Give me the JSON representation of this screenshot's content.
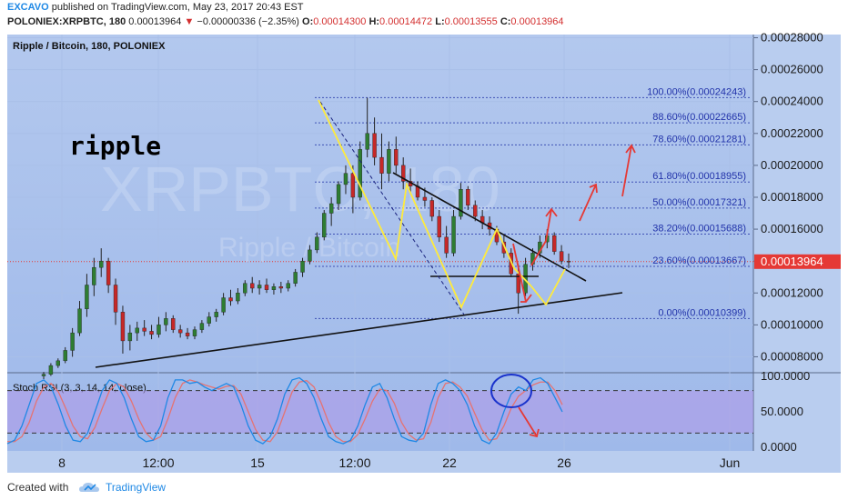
{
  "header": {
    "author": "EXCAVO",
    "published": "published on TradingView.com, May 23, 2017 20:43 EST",
    "symbol": "POLONIEX:XRPBTC, 180",
    "last": "0.00013964",
    "change_arrow": "▼",
    "change": "−0.00000336 (−2.35%)",
    "o_label": "O:",
    "o_value": "0.00014300",
    "h_label": "H:",
    "h_value": "0.00014472",
    "l_label": "L:",
    "l_value": "0.00013555",
    "c_label": "C:",
    "c_value": "0.00013964"
  },
  "footer": {
    "created_with": "Created with",
    "brand": "TradingView"
  },
  "chart_data": {
    "type": "candlestick",
    "title": "Ripple / Bitcoin, 180, POLONIEX",
    "annotation_text": "ripple",
    "watermark_text": "XRPBTC, 180",
    "watermark_sub": "Ripple / Bitcoin",
    "y_axis_ticks": [
      "0.00028000",
      "0.00026000",
      "0.00024000",
      "0.00022000",
      "0.00020000",
      "0.00018000",
      "0.00016000",
      "0.00014000",
      "0.00012000",
      "0.00010000",
      "0.00008000"
    ],
    "ylim": [
      7e-05,
      0.000282
    ],
    "x_axis_ticks": [
      "8",
      "12:00",
      "15",
      "12:00",
      "22",
      "26",
      "Jun"
    ],
    "current_price_label": "0.00013964",
    "candles": [
      [
        6.8e-05,
        7.05e-05,
        6.6e-05,
        6.9e-05
      ],
      [
        6.9e-05,
        7.6e-05,
        6.8e-05,
        7.45e-05
      ],
      [
        7.45e-05,
        7.9e-05,
        7.3e-05,
        7.75e-05
      ],
      [
        7.75e-05,
        8.6e-05,
        7.6e-05,
        8.4e-05
      ],
      [
        8.4e-05,
        9.8e-05,
        8e-05,
        9.5e-05
      ],
      [
        9.5e-05,
        0.000115,
        9.3e-05,
        0.00011
      ],
      [
        0.00011,
        0.000132,
        0.000105,
        0.000125
      ],
      [
        0.000125,
        0.000142,
        0.000118,
        0.000136
      ],
      [
        0.000136,
        0.000148,
        0.00013,
        0.00014
      ],
      [
        0.00014,
        0.000142,
        0.00012,
        0.000125
      ],
      [
        0.000125,
        0.000129,
        0.0001,
        0.000108
      ],
      [
        0.000108,
        0.000112,
        8.2e-05,
        9e-05
      ],
      [
        9e-05,
        0.0001,
        8.4e-05,
        9.5e-05
      ],
      [
        9.5e-05,
        0.000102,
        9e-05,
        9.8e-05
      ],
      [
        9.8e-05,
        0.000103,
        9.3e-05,
        9.6e-05
      ],
      [
        9.6e-05,
        0.0001,
        9.1e-05,
        9.4e-05
      ],
      [
        9.4e-05,
        0.000105,
        9.2e-05,
        0.0001
      ],
      [
        0.0001,
        0.000108,
        9.6e-05,
        0.000104
      ],
      [
        0.000104,
        0.000106,
        9.5e-05,
        9.7e-05
      ],
      [
        9.7e-05,
        0.0001,
        9.2e-05,
        9.5e-05
      ],
      [
        9.5e-05,
        9.8e-05,
        9.1e-05,
        9.3e-05
      ],
      [
        9.3e-05,
        9.9e-05,
        9.1e-05,
        9.7e-05
      ],
      [
        9.7e-05,
        0.000103,
        9.5e-05,
        0.000101
      ],
      [
        0.000101,
        0.000108,
        9.9e-05,
        0.000105
      ],
      [
        0.000105,
        0.00011,
        0.000102,
        0.000108
      ],
      [
        0.000108,
        0.00012,
        0.000106,
        0.000117
      ],
      [
        0.000117,
        0.000122,
        0.000112,
        0.000115
      ],
      [
        0.000115,
        0.000123,
        0.000113,
        0.00012
      ],
      [
        0.00012,
        0.000128,
        0.000118,
        0.000126
      ],
      [
        0.000126,
        0.00013,
        0.00012,
        0.000123
      ],
      [
        0.000123,
        0.000128,
        0.000119,
        0.000125
      ],
      [
        0.000125,
        0.000129,
        0.00012,
        0.000122
      ],
      [
        0.000122,
        0.000126,
        0.000119,
        0.000124
      ],
      [
        0.000124,
        0.000127,
        0.00012,
        0.000123
      ],
      [
        0.000123,
        0.000128,
        0.000121,
        0.000126
      ],
      [
        0.000126,
        0.000135,
        0.000124,
        0.000133
      ],
      [
        0.000133,
        0.000142,
        0.00013,
        0.00014
      ],
      [
        0.00014,
        0.00015,
        0.000138,
        0.000147
      ],
      [
        0.000147,
        0.000158,
        0.000145,
        0.000155
      ],
      [
        0.000155,
        0.000172,
        0.000153,
        0.00017
      ],
      [
        0.00017,
        0.00018,
        0.000162,
        0.000176
      ],
      [
        0.000176,
        0.00019,
        0.000172,
        0.000188
      ],
      [
        0.000188,
        0.0002,
        0.000182,
        0.000195
      ],
      [
        0.000195,
        0.0002,
        0.00017,
        0.00018
      ],
      [
        0.00018,
        0.000215,
        0.000178,
        0.00021
      ],
      [
        0.00021,
        0.0002424,
        0.000205,
        0.00022
      ],
      [
        0.00022,
        0.00023,
        0.0002,
        0.000205
      ],
      [
        0.000205,
        0.00022,
        0.000185,
        0.000195
      ],
      [
        0.000195,
        0.000215,
        0.00019,
        0.00021
      ],
      [
        0.00021,
        0.000218,
        0.000195,
        0.0002
      ],
      [
        0.0002,
        0.000205,
        0.000185,
        0.00019
      ],
      [
        0.00019,
        0.000198,
        0.000182,
        0.000187
      ],
      [
        0.000187,
        0.00019,
        0.000178,
        0.00018
      ],
      [
        0.00018,
        0.000186,
        0.000174,
        0.000178
      ],
      [
        0.000178,
        0.00018,
        0.000165,
        0.000168
      ],
      [
        0.000168,
        0.000172,
        0.000152,
        0.000155
      ],
      [
        0.000155,
        0.000162,
        0.000142,
        0.000145
      ],
      [
        0.000145,
        0.000172,
        0.000143,
        0.000168
      ],
      [
        0.000168,
        0.000189,
        0.000166,
        0.000185
      ],
      [
        0.000185,
        0.000187,
        0.000172,
        0.000175
      ],
      [
        0.000175,
        0.000178,
        0.000165,
        0.000168
      ],
      [
        0.000168,
        0.000172,
        0.00016,
        0.000164
      ],
      [
        0.000164,
        0.000168,
        0.000156,
        0.00016
      ],
      [
        0.00016,
        0.000162,
        0.00015,
        0.000152
      ],
      [
        0.000152,
        0.000156,
        0.000142,
        0.000145
      ],
      [
        0.000145,
        0.000148,
        0.00013,
        0.000132
      ],
      [
        0.000132,
        0.000138,
        0.000107,
        0.00012
      ],
      [
        0.00012,
        0.000142,
        0.000118,
        0.000138
      ],
      [
        0.000138,
        0.000148,
        0.000134,
        0.000145
      ],
      [
        0.000145,
        0.000156,
        0.000142,
        0.000152
      ],
      [
        0.000152,
        0.00016,
        0.000148,
        0.000156
      ],
      [
        0.000156,
        0.000158,
        0.000144,
        0.000146
      ],
      [
        0.000146,
        0.00015,
        0.000138,
        0.00014
      ],
      [
        0.00014,
        0.0001447,
        0.0001356,
        0.0001396
      ]
    ],
    "fibonacci": [
      {
        "label": "100.00%(0.00024243)",
        "value": 0.00024243
      },
      {
        "label": "88.60%(0.00022665)",
        "value": 0.00022665
      },
      {
        "label": "78.60%(0.00021281)",
        "value": 0.00021281
      },
      {
        "label": "61.80%(0.00018955)",
        "value": 0.00018955
      },
      {
        "label": "50.00%(0.00017321)",
        "value": 0.00017321
      },
      {
        "label": "38.20%(0.00015688)",
        "value": 0.00015688
      },
      {
        "label": "23.60%(0.00013667)",
        "value": 0.00013667
      },
      {
        "label": "0.00%(0.00010399)",
        "value": 0.00010399
      }
    ],
    "indicator": {
      "title": "Stoch RSI (3, 3, 14, 14, close)",
      "ticks": [
        "100.0000",
        "50.0000",
        "0.0000"
      ],
      "ylim": [
        0,
        100
      ],
      "band": [
        20,
        80
      ],
      "k": [
        5,
        10,
        30,
        60,
        90,
        95,
        85,
        60,
        30,
        10,
        8,
        20,
        50,
        80,
        95,
        90,
        70,
        40,
        15,
        8,
        10,
        30,
        70,
        95,
        95,
        90,
        92,
        85,
        80,
        85,
        90,
        85,
        60,
        30,
        10,
        5,
        15,
        40,
        75,
        95,
        98,
        90,
        70,
        40,
        15,
        8,
        5,
        10,
        30,
        60,
        85,
        90,
        70,
        40,
        15,
        10,
        8,
        20,
        60,
        90,
        95,
        90,
        80,
        60,
        30,
        10,
        5,
        20,
        50,
        75,
        85,
        80,
        95,
        98,
        90,
        70,
        50
      ],
      "d": [
        8,
        8,
        15,
        35,
        65,
        85,
        90,
        78,
        55,
        30,
        15,
        12,
        28,
        55,
        80,
        90,
        85,
        65,
        40,
        20,
        10,
        15,
        40,
        70,
        90,
        95,
        92,
        88,
        85,
        82,
        86,
        87,
        75,
        50,
        25,
        10,
        8,
        22,
        50,
        78,
        92,
        94,
        85,
        62,
        35,
        15,
        8,
        8,
        18,
        40,
        65,
        82,
        80,
        62,
        35,
        18,
        10,
        12,
        35,
        70,
        90,
        92,
        85,
        72,
        48,
        25,
        10,
        12,
        30,
        55,
        72,
        80,
        88,
        92,
        92,
        80,
        60
      ]
    }
  }
}
